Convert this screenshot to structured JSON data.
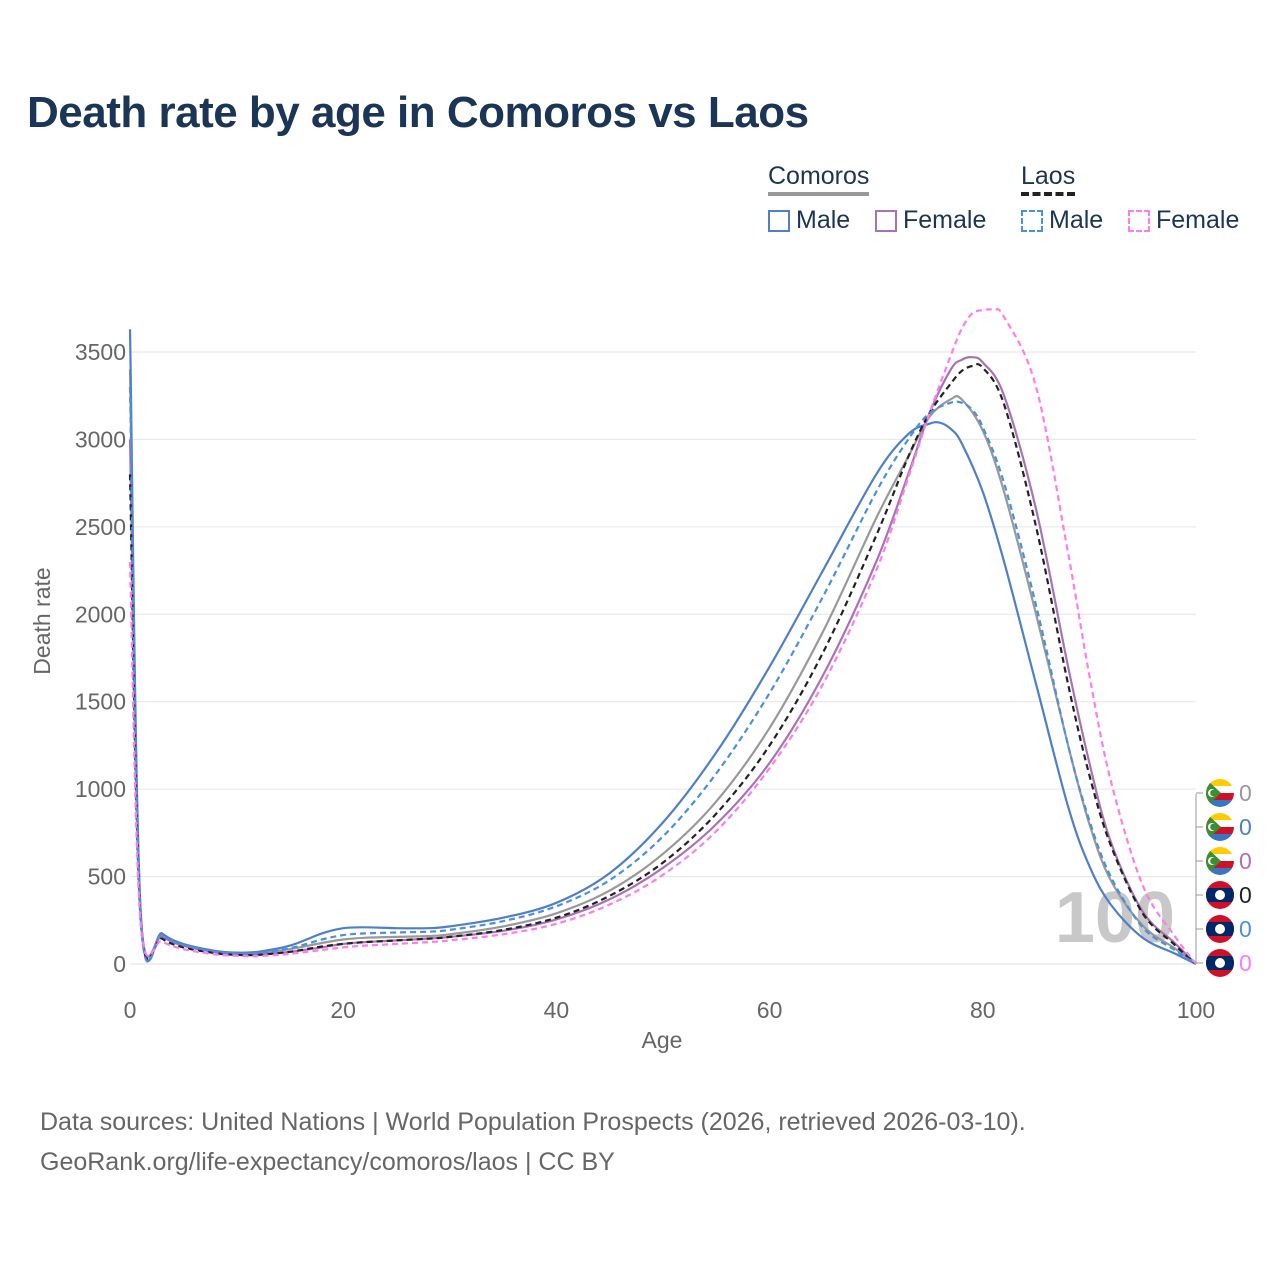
{
  "title": "Death rate by age in Comoros vs Laos",
  "legend": {
    "groups": [
      {
        "country": "Comoros",
        "style": "solid",
        "items": [
          {
            "label": "Male",
            "color": "#4f7fca"
          },
          {
            "label": "Female",
            "color": "#a873b5"
          }
        ]
      },
      {
        "country": "Laos",
        "style": "dashed",
        "items": [
          {
            "label": "Male",
            "color": "#4a90e2"
          },
          {
            "label": "Female",
            "color": "#ff7bee"
          }
        ]
      }
    ]
  },
  "year_watermark": "100",
  "footer": {
    "line1": "Data sources: United Nations | World Population Prospects (2026, retrieved 2026-03-10).",
    "line2": "GeoRank.org/life-expectancy/comoros/laos | CC BY"
  },
  "chart_data": {
    "type": "line",
    "xlabel": "Age",
    "ylabel": "Death rate",
    "xlim": [
      0,
      100
    ],
    "ylim": [
      0,
      3700
    ],
    "x_ticks": [
      0,
      20,
      40,
      60,
      80,
      100
    ],
    "y_ticks": [
      0,
      500,
      1000,
      1500,
      2000,
      2500,
      3000,
      3500
    ],
    "grid": true,
    "legend_position": "top-right",
    "series": [
      {
        "name": "Comoros Total",
        "color": "#999999",
        "dash": false,
        "x": [
          0,
          1,
          3,
          5,
          8,
          10,
          12,
          15,
          18,
          20,
          22,
          25,
          28,
          30,
          35,
          40,
          45,
          50,
          55,
          60,
          65,
          70,
          73,
          75,
          77,
          78,
          80,
          82,
          85,
          88,
          90,
          92,
          95,
          98,
          100
        ],
        "y": [
          3400,
          290,
          170,
          110,
          70,
          60,
          62,
          85,
          120,
          140,
          150,
          155,
          160,
          170,
          215,
          290,
          420,
          630,
          930,
          1350,
          1900,
          2550,
          2900,
          3130,
          3230,
          3230,
          3050,
          2700,
          2000,
          1250,
          800,
          480,
          220,
          90,
          0
        ]
      },
      {
        "name": "Comoros Male",
        "color": "#4f7fca",
        "dash": false,
        "x": [
          0,
          1,
          3,
          5,
          8,
          10,
          12,
          15,
          18,
          20,
          22,
          25,
          28,
          30,
          35,
          40,
          45,
          50,
          55,
          60,
          65,
          70,
          73,
          75,
          76,
          77,
          78,
          80,
          82,
          85,
          88,
          90,
          92,
          95,
          98,
          100
        ],
        "y": [
          3630,
          300,
          175,
          115,
          75,
          65,
          70,
          105,
          175,
          205,
          210,
          205,
          205,
          215,
          265,
          350,
          520,
          810,
          1210,
          1700,
          2250,
          2800,
          3030,
          3090,
          3095,
          3060,
          2980,
          2700,
          2300,
          1600,
          900,
          560,
          340,
          150,
          60,
          0
        ]
      },
      {
        "name": "Comoros Female",
        "color": "#a873b5",
        "dash": false,
        "x": [
          0,
          1,
          3,
          5,
          8,
          10,
          12,
          15,
          18,
          20,
          22,
          25,
          28,
          30,
          35,
          40,
          45,
          50,
          55,
          60,
          65,
          70,
          73,
          75,
          77,
          78,
          79,
          80,
          82,
          85,
          88,
          90,
          92,
          95,
          98,
          100
        ],
        "y": [
          3000,
          280,
          160,
          105,
          68,
          58,
          55,
          70,
          95,
          115,
          125,
          135,
          145,
          155,
          190,
          255,
          370,
          550,
          800,
          1150,
          1650,
          2300,
          2800,
          3150,
          3400,
          3455,
          3470,
          3440,
          3250,
          2600,
          1700,
          1150,
          700,
          300,
          120,
          0
        ]
      },
      {
        "name": "Laos Total",
        "color": "#222222",
        "dash": true,
        "x": [
          0,
          1,
          3,
          5,
          8,
          10,
          12,
          15,
          18,
          20,
          22,
          25,
          28,
          30,
          35,
          40,
          45,
          50,
          55,
          60,
          65,
          70,
          73,
          75,
          77,
          78,
          79,
          80,
          82,
          85,
          88,
          90,
          92,
          95,
          98,
          100
        ],
        "y": [
          2800,
          250,
          145,
          95,
          62,
          52,
          52,
          70,
          100,
          115,
          125,
          135,
          145,
          155,
          195,
          265,
          390,
          580,
          860,
          1250,
          1780,
          2450,
          2900,
          3150,
          3320,
          3390,
          3420,
          3410,
          3200,
          2500,
          1600,
          1080,
          680,
          290,
          110,
          0
        ]
      },
      {
        "name": "Laos Male",
        "color": "#4a90e2",
        "dash": true,
        "x": [
          0,
          1,
          3,
          5,
          8,
          10,
          12,
          15,
          18,
          20,
          22,
          25,
          28,
          30,
          35,
          40,
          45,
          50,
          55,
          60,
          65,
          70,
          73,
          75,
          77,
          78,
          79,
          80,
          82,
          85,
          88,
          90,
          92,
          95,
          98,
          100
        ],
        "y": [
          3300,
          270,
          160,
          105,
          70,
          60,
          62,
          90,
          140,
          165,
          175,
          180,
          185,
          195,
          245,
          330,
          480,
          730,
          1090,
          1550,
          2100,
          2700,
          3000,
          3150,
          3210,
          3210,
          3170,
          3070,
          2750,
          2050,
          1250,
          820,
          500,
          210,
          80,
          0
        ]
      },
      {
        "name": "Laos Female",
        "color": "#ff7bee",
        "dash": true,
        "x": [
          0,
          1,
          3,
          5,
          8,
          10,
          12,
          15,
          18,
          20,
          22,
          25,
          28,
          30,
          35,
          40,
          45,
          50,
          55,
          60,
          65,
          70,
          73,
          75,
          77,
          78,
          79,
          80,
          81,
          82,
          85,
          88,
          90,
          92,
          95,
          98,
          100
        ],
        "y": [
          2300,
          230,
          130,
          85,
          55,
          47,
          45,
          58,
          80,
          95,
          105,
          115,
          125,
          135,
          170,
          230,
          340,
          510,
          760,
          1120,
          1600,
          2250,
          2780,
          3150,
          3480,
          3630,
          3720,
          3740,
          3740,
          3700,
          3300,
          2350,
          1650,
          1050,
          450,
          160,
          0
        ]
      }
    ],
    "end_labels": [
      {
        "flag": "comoros",
        "value": "0",
        "color": "#999999"
      },
      {
        "flag": "comoros",
        "value": "0",
        "color": "#4f7fca"
      },
      {
        "flag": "comoros",
        "value": "0",
        "color": "#a873b5"
      },
      {
        "flag": "laos",
        "value": "0",
        "color": "#222222"
      },
      {
        "flag": "laos",
        "value": "0",
        "color": "#4a90e2"
      },
      {
        "flag": "laos",
        "value": "0",
        "color": "#ff7bee"
      }
    ]
  }
}
